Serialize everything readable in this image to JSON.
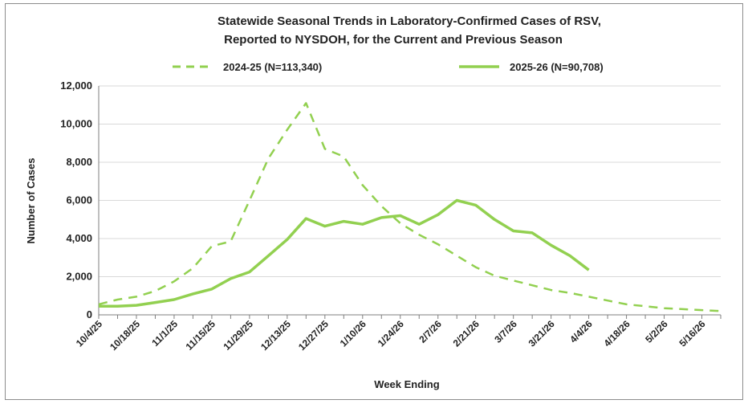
{
  "chart_data": {
    "type": "line",
    "title_line1": "Statewide Seasonal Trends in Laboratory-Confirmed  Cases of RSV,",
    "title_line2": "Reported to NYSDOH, for the Current and Previous Season",
    "xlabel": "Week Ending",
    "ylabel": "Number of Cases",
    "ylim": [
      0,
      12000
    ],
    "y_ticks": [
      "0",
      "2,000",
      "4,000",
      "6,000",
      "8,000",
      "10,000",
      "12,000"
    ],
    "grid": "horizontal",
    "legend_position": "top",
    "x_tick_labels": [
      "10/4/25",
      "10/18/25",
      "11/1/25",
      "11/15/25",
      "11/29/25",
      "12/13/25",
      "12/27/25",
      "1/10/26",
      "1/24/26",
      "2/7/26",
      "2/21/26",
      "3/7/26",
      "3/21/26",
      "4/4/26",
      "4/18/26",
      "5/2/26",
      "5/16/26"
    ],
    "series": [
      {
        "name": "2024-25 (N=113,340)",
        "color": "#92d050",
        "style": "dashed",
        "values": [
          550,
          800,
          950,
          1250,
          1750,
          2450,
          3600,
          3850,
          6000,
          8200,
          9700,
          11100,
          8700,
          8300,
          6800,
          5700,
          4800,
          4200,
          3700,
          3100,
          2500,
          2050,
          1800,
          1550,
          1300,
          1150,
          950,
          750,
          550,
          450,
          350,
          300,
          250,
          200
        ]
      },
      {
        "name": "2025-26 (N=90,708)",
        "color": "#92d050",
        "style": "solid",
        "values": [
          450,
          450,
          500,
          650,
          800,
          1100,
          1350,
          1900,
          2250,
          3100,
          3950,
          5050,
          4650,
          4900,
          4750,
          5100,
          5200,
          4750,
          5250,
          6000,
          5750,
          5000,
          4400,
          4300,
          3650,
          3100,
          2350
        ]
      }
    ]
  }
}
